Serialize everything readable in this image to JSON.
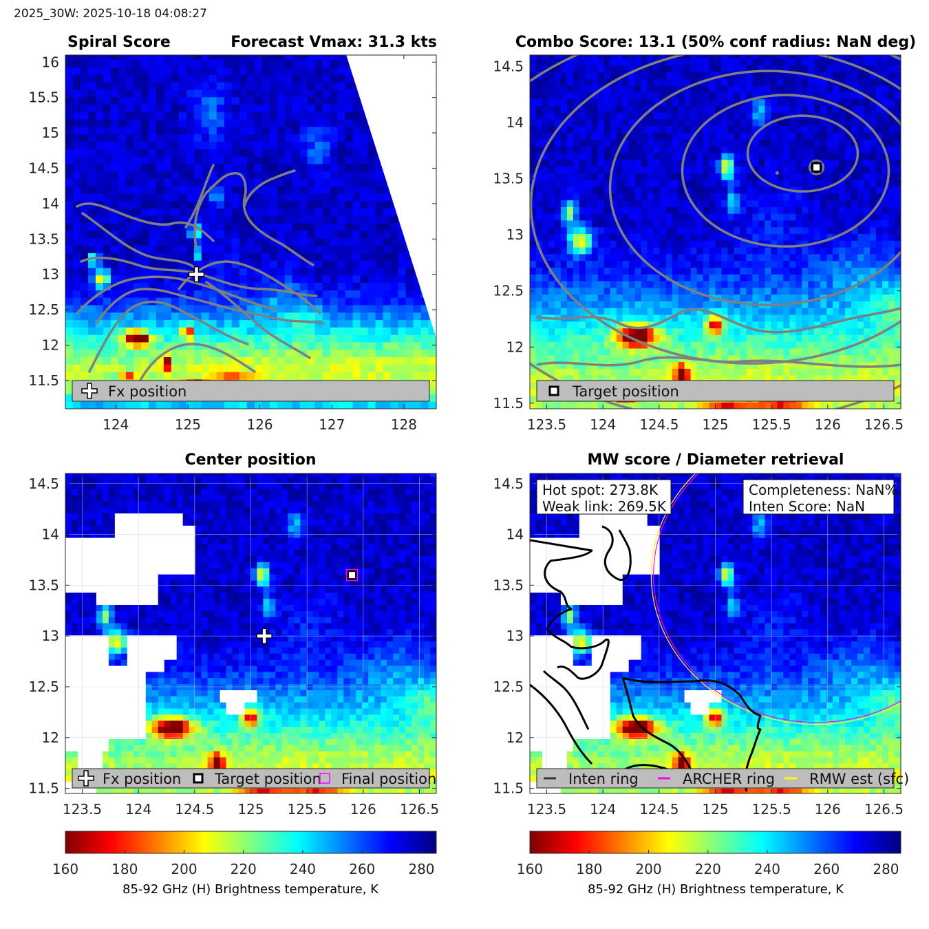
{
  "header": {
    "title": "2025_30W: 2025-10-18 04:08:27"
  },
  "colors": {
    "frame": "#262626",
    "contour": "#808080",
    "legend_box": "#bdbdbd",
    "archer_ring": "#ff00ff",
    "rmw_ring": "#ffff00",
    "missing": "#ffffff"
  },
  "colormap": {
    "name": "jet-reversed",
    "stops": [
      "#800000",
      "#ff0000",
      "#ff8000",
      "#ffff00",
      "#80ff80",
      "#00ffff",
      "#0080ff",
      "#0000ff",
      "#000080"
    ]
  },
  "chart_data": [
    {
      "id": "spiral",
      "type": "heatmap",
      "title_left": "Spiral Score",
      "title_right": "Forecast Vmax: 31.3 kts",
      "xlim": [
        123.3,
        128.45
      ],
      "ylim": [
        11.1,
        16.1
      ],
      "xticks": [
        "124",
        "125",
        "126",
        "127",
        "128"
      ],
      "yticks": [
        "11.5",
        "12",
        "12.5",
        "13",
        "13.5",
        "14",
        "14.5",
        "15",
        "15.5",
        "16"
      ],
      "swath_edge": {
        "top_lon": 127.2,
        "top_lat": 16.1,
        "bottom_lon": 128.45,
        "bottom_lat": 12.1
      },
      "markers": [
        {
          "kind": "plus",
          "lon": 125.12,
          "lat": 13.0
        }
      ],
      "legend": [
        {
          "symbol": "plus",
          "label": "Fx position"
        }
      ]
    },
    {
      "id": "combo",
      "type": "heatmap",
      "title_left": "Combo Score: 13.1  (50% conf radius: NaN deg)",
      "title_right": "",
      "xlim": [
        123.35,
        126.65
      ],
      "ylim": [
        11.45,
        14.6
      ],
      "xticks": [
        "123.5",
        "124",
        "124.5",
        "125",
        "125.5",
        "126",
        "126.5"
      ],
      "yticks": [
        "11.5",
        "12",
        "12.5",
        "13",
        "13.5",
        "14",
        "14.5"
      ],
      "markers": [
        {
          "kind": "square",
          "lon": 125.9,
          "lat": 13.6
        }
      ],
      "legend": [
        {
          "symbol": "square",
          "label": "Target position"
        }
      ]
    },
    {
      "id": "center",
      "type": "heatmap",
      "title_left": "",
      "title_center": "Center position",
      "xlim": [
        123.35,
        126.65
      ],
      "ylim": [
        11.45,
        14.6
      ],
      "xticks": [
        "123.5",
        "124",
        "124.5",
        "125",
        "125.5",
        "126",
        "126.5"
      ],
      "yticks": [
        "11.5",
        "12",
        "12.5",
        "13",
        "13.5",
        "14",
        "14.5"
      ],
      "markers": [
        {
          "kind": "plus",
          "lon": 125.12,
          "lat": 13.0
        },
        {
          "kind": "square",
          "lon": 125.9,
          "lat": 13.6
        },
        {
          "kind": "magenta-square",
          "lon": 125.9,
          "lat": 13.6
        }
      ],
      "legend": [
        {
          "symbol": "plus",
          "label": "Fx position"
        },
        {
          "symbol": "square",
          "label": "Target position"
        },
        {
          "symbol": "magenta-square",
          "label": "Final position"
        }
      ]
    },
    {
      "id": "mw",
      "type": "heatmap",
      "title_left": "",
      "title_center": "MW score / Diameter retrieval",
      "xlim": [
        123.35,
        126.65
      ],
      "ylim": [
        11.45,
        14.6
      ],
      "xticks": [
        "123.5",
        "124",
        "124.5",
        "125",
        "125.5",
        "126",
        "126.5"
      ],
      "yticks": [
        "11.5",
        "12",
        "12.5",
        "13",
        "13.5",
        "14",
        "14.5"
      ],
      "info_left": [
        "Hot spot: 273.8K",
        "Weak link: 269.5K"
      ],
      "info_right": [
        "Completeness: NaN%",
        "Inten Score: NaN"
      ],
      "rings": [
        {
          "name": "ARCHER ring",
          "lon": 125.9,
          "lat": 13.6,
          "radius_deg": 1.45
        },
        {
          "name": "RMW est (sfc)",
          "lon": 125.9,
          "lat": 13.6,
          "radius_deg": 1.47
        }
      ],
      "legend": [
        {
          "symbol": "line-dark",
          "label": "Inten ring"
        },
        {
          "symbol": "line-magenta",
          "label": "ARCHER ring"
        },
        {
          "symbol": "line-yellow",
          "label": "RMW est (sfc)"
        }
      ]
    }
  ],
  "colorbars": [
    {
      "min": 160,
      "max": 285,
      "ticks": [
        "160",
        "180",
        "200",
        "220",
        "240",
        "260",
        "280"
      ],
      "label": "85-92 GHz (H) Brightness temperature, K"
    },
    {
      "min": 160,
      "max": 285,
      "ticks": [
        "160",
        "180",
        "200",
        "220",
        "240",
        "260",
        "280"
      ],
      "label": "85-92 GHz (H) Brightness temperature, K"
    }
  ]
}
